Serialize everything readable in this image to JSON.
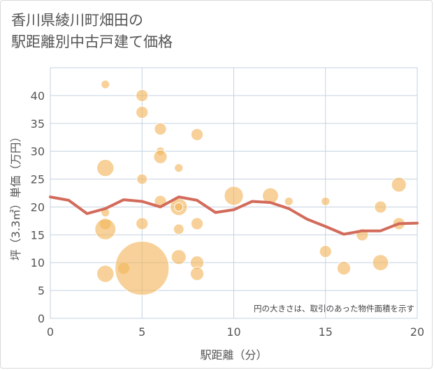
{
  "title_line1": "香川県綾川町畑田の",
  "title_line2": "駅距離別中古戸建て価格",
  "chart_data": {
    "type": "scatter",
    "title": "香川県綾川町畑田の駅距離別中古戸建て価格",
    "xlabel": "駅距離（分）",
    "ylabel": "坪（3.3㎡）単価（万円）",
    "xlim": [
      0,
      20
    ],
    "ylim": [
      0,
      45
    ],
    "xticks": [
      0,
      5,
      10,
      15,
      20
    ],
    "yticks": [
      0,
      5,
      10,
      15,
      20,
      25,
      30,
      35,
      40
    ],
    "grid": true,
    "annotation": "円の大きさは、取引のあった物件面積を示す",
    "colors": {
      "bubble": "#f2b45a",
      "line": "#d36b5b",
      "grid": "#c5d2e0",
      "axis_text": "#555555"
    },
    "bubbles": [
      {
        "x": 3,
        "y": 42,
        "size": 1
      },
      {
        "x": 3,
        "y": 27,
        "size": 4
      },
      {
        "x": 3,
        "y": 19,
        "size": 1
      },
      {
        "x": 3,
        "y": 17,
        "size": 2
      },
      {
        "x": 3,
        "y": 16,
        "size": 6
      },
      {
        "x": 3,
        "y": 8,
        "size": 4
      },
      {
        "x": 4,
        "y": 9,
        "size": 2
      },
      {
        "x": 5,
        "y": 40,
        "size": 2
      },
      {
        "x": 5,
        "y": 37,
        "size": 2
      },
      {
        "x": 5,
        "y": 25,
        "size": 1.5
      },
      {
        "x": 5,
        "y": 17,
        "size": 2
      },
      {
        "x": 5,
        "y": 9,
        "size": 40
      },
      {
        "x": 6,
        "y": 34,
        "size": 2
      },
      {
        "x": 6,
        "y": 30,
        "size": 1
      },
      {
        "x": 6,
        "y": 29,
        "size": 2.5
      },
      {
        "x": 6,
        "y": 21,
        "size": 2
      },
      {
        "x": 7,
        "y": 27,
        "size": 1
      },
      {
        "x": 7,
        "y": 20,
        "size": 4
      },
      {
        "x": 7,
        "y": 20,
        "size": 1
      },
      {
        "x": 7,
        "y": 16,
        "size": 1.5
      },
      {
        "x": 7,
        "y": 11,
        "size": 3
      },
      {
        "x": 8,
        "y": 33,
        "size": 2
      },
      {
        "x": 8,
        "y": 17,
        "size": 2
      },
      {
        "x": 8,
        "y": 10,
        "size": 2.5
      },
      {
        "x": 8,
        "y": 8,
        "size": 2.5
      },
      {
        "x": 10,
        "y": 22,
        "size": 5
      },
      {
        "x": 12,
        "y": 22,
        "size": 3.5
      },
      {
        "x": 13,
        "y": 21,
        "size": 1
      },
      {
        "x": 15,
        "y": 21,
        "size": 1
      },
      {
        "x": 15,
        "y": 12,
        "size": 2
      },
      {
        "x": 16,
        "y": 9,
        "size": 2.5
      },
      {
        "x": 17,
        "y": 15,
        "size": 2
      },
      {
        "x": 18,
        "y": 20,
        "size": 2
      },
      {
        "x": 18,
        "y": 10,
        "size": 3.5
      },
      {
        "x": 19,
        "y": 24,
        "size": 3
      },
      {
        "x": 19,
        "y": 17,
        "size": 2
      }
    ],
    "trend": {
      "x": [
        0,
        1,
        2,
        3,
        4,
        5,
        6,
        7,
        8,
        9,
        10,
        11,
        12,
        13,
        14,
        15,
        16,
        17,
        18,
        19,
        20
      ],
      "y": [
        21.8,
        21.2,
        18.8,
        19.7,
        21.3,
        21.0,
        20.0,
        21.8,
        21.2,
        19.0,
        19.5,
        21.0,
        20.8,
        19.7,
        17.8,
        16.5,
        15.1,
        15.7,
        15.7,
        17.0,
        17.1
      ]
    }
  }
}
